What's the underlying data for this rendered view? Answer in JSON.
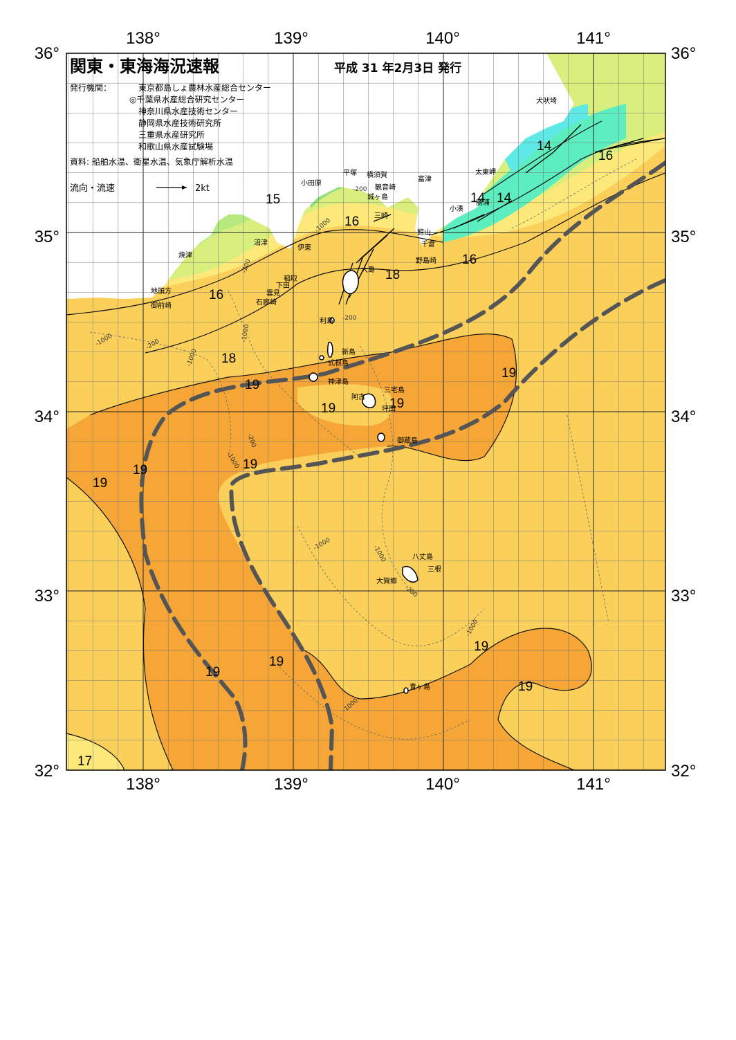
{
  "header": {
    "title": "関東・東海海況速報",
    "issued": "平成 31 年2月3日 発行",
    "publisher_label": "発行機関：",
    "publishers": [
      "東京都島しょ農林水産総合センター",
      "◎千葉県水産総合研究センター",
      "神奈川県水産技術センター",
      "静岡県水産技術研究所",
      "三重県水産研究所",
      "和歌山県水産試験場"
    ],
    "sources": "資料: 船舶水温、衛星水温、気象庁解析水温",
    "current_legend": "流向・流速",
    "current_scale": "2kt"
  },
  "axes": {
    "lon_labels": [
      "138°",
      "139°",
      "140°",
      "141°"
    ],
    "lat_labels": [
      "36°",
      "35°",
      "34°",
      "33°",
      "32°"
    ]
  },
  "place_names": [
    "犬吠埼",
    "太東岬",
    "勝浦",
    "小湊",
    "館山",
    "千倉",
    "野島崎",
    "富津",
    "横須賀",
    "平塚",
    "小田原",
    "観音崎",
    "城ヶ島",
    "三崎",
    "沼津",
    "伊東",
    "焼津",
    "稲取",
    "下田",
    "雲見",
    "石廊崎",
    "地頭方",
    "御前崎",
    "大島",
    "利島",
    "新島",
    "式根島",
    "神津島",
    "三宅島",
    "阿古",
    "坪田",
    "御蔵島",
    "八丈島",
    "三根",
    "大賀郷",
    "青ヶ島"
  ],
  "isotherm_labels": [
    "15",
    "16",
    "16",
    "16",
    "16",
    "14",
    "14",
    "14",
    "18",
    "18",
    "19",
    "19",
    "19",
    "19",
    "19",
    "19",
    "19",
    "19",
    "19",
    "19",
    "19",
    "17"
  ],
  "depth_labels": [
    "-1000",
    "-200",
    "-1000",
    "-200",
    "-200",
    "-1000",
    "-1000",
    "-200",
    "-200",
    "-1000",
    "-1000",
    "-1000",
    "-200",
    "-1000",
    "-1000"
  ],
  "colors": {
    "warm_19": "#f5a636",
    "temp_18": "#fbd05a",
    "temp_17": "#fde979",
    "temp_16": "#d9ef7d",
    "temp_15": "#8fe07a",
    "temp_14": "#5ceebe",
    "cold_13": "#5ee8e6",
    "kuroshio_axis": "#555555"
  }
}
